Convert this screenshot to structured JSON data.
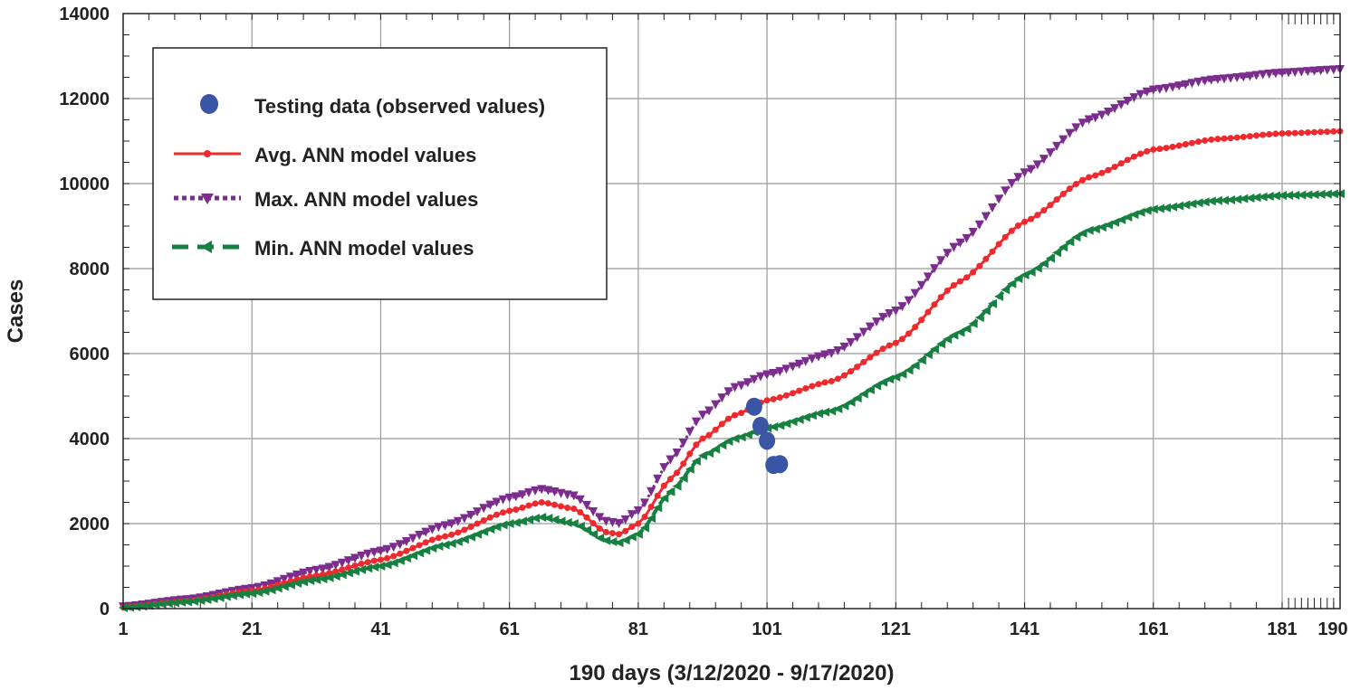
{
  "chart_data": {
    "type": "line",
    "title": "",
    "xlabel": "190 days (3/12/2020 - 9/17/2020)",
    "ylabel": "Cases",
    "xlim": [
      1,
      190
    ],
    "ylim": [
      0,
      14000
    ],
    "x_ticks": [
      1,
      21,
      41,
      61,
      81,
      101,
      121,
      141,
      161,
      181,
      190
    ],
    "y_ticks": [
      0,
      2000,
      4000,
      6000,
      8000,
      10000,
      12000,
      14000
    ],
    "grid": true,
    "legend_position": "top-left",
    "series": [
      {
        "name": "Testing data (observed values)",
        "style": "markers-circle",
        "color": "#3a55a4",
        "x": [
          99,
          100,
          101,
          102,
          103
        ],
        "values": [
          4750,
          4300,
          3950,
          3380,
          3400
        ]
      },
      {
        "name": "Avg. ANN model values",
        "style": "line-circle",
        "color": "#ee2a2e",
        "x": [
          1,
          11,
          21,
          31,
          41,
          51,
          61,
          66,
          71,
          76,
          78,
          81,
          86,
          91,
          96,
          101,
          111,
          121,
          131,
          141,
          151,
          161,
          171,
          181,
          190
        ],
        "values": [
          30,
          180,
          420,
          780,
          1150,
          1700,
          2300,
          2500,
          2350,
          1800,
          1750,
          2000,
          3050,
          4000,
          4550,
          4900,
          5350,
          6250,
          7700,
          9100,
          10150,
          10800,
          11050,
          11180,
          11230
        ]
      },
      {
        "name": "Max. ANN model values",
        "style": "dotted-triangle-down",
        "color": "#7b2d8e",
        "x": [
          1,
          11,
          21,
          31,
          41,
          51,
          61,
          66,
          71,
          76,
          78,
          81,
          86,
          91,
          96,
          101,
          111,
          121,
          131,
          141,
          151,
          161,
          171,
          181,
          190
        ],
        "values": [
          40,
          210,
          470,
          900,
          1350,
          1950,
          2600,
          2800,
          2650,
          2050,
          2000,
          2300,
          3500,
          4550,
          5200,
          5500,
          6000,
          7000,
          8600,
          10250,
          11500,
          12200,
          12450,
          12600,
          12680
        ]
      },
      {
        "name": "Min. ANN model values",
        "style": "dashed-triangle-left",
        "color": "#168041",
        "x": [
          1,
          11,
          21,
          31,
          41,
          51,
          61,
          66,
          71,
          76,
          78,
          81,
          86,
          91,
          96,
          101,
          111,
          121,
          131,
          141,
          151,
          161,
          171,
          181,
          190
        ],
        "values": [
          20,
          160,
          360,
          680,
          1000,
          1500,
          2000,
          2150,
          2000,
          1600,
          1550,
          1750,
          2750,
          3600,
          4000,
          4250,
          4650,
          5450,
          6500,
          7850,
          8900,
          9400,
          9600,
          9720,
          9760
        ]
      }
    ]
  }
}
